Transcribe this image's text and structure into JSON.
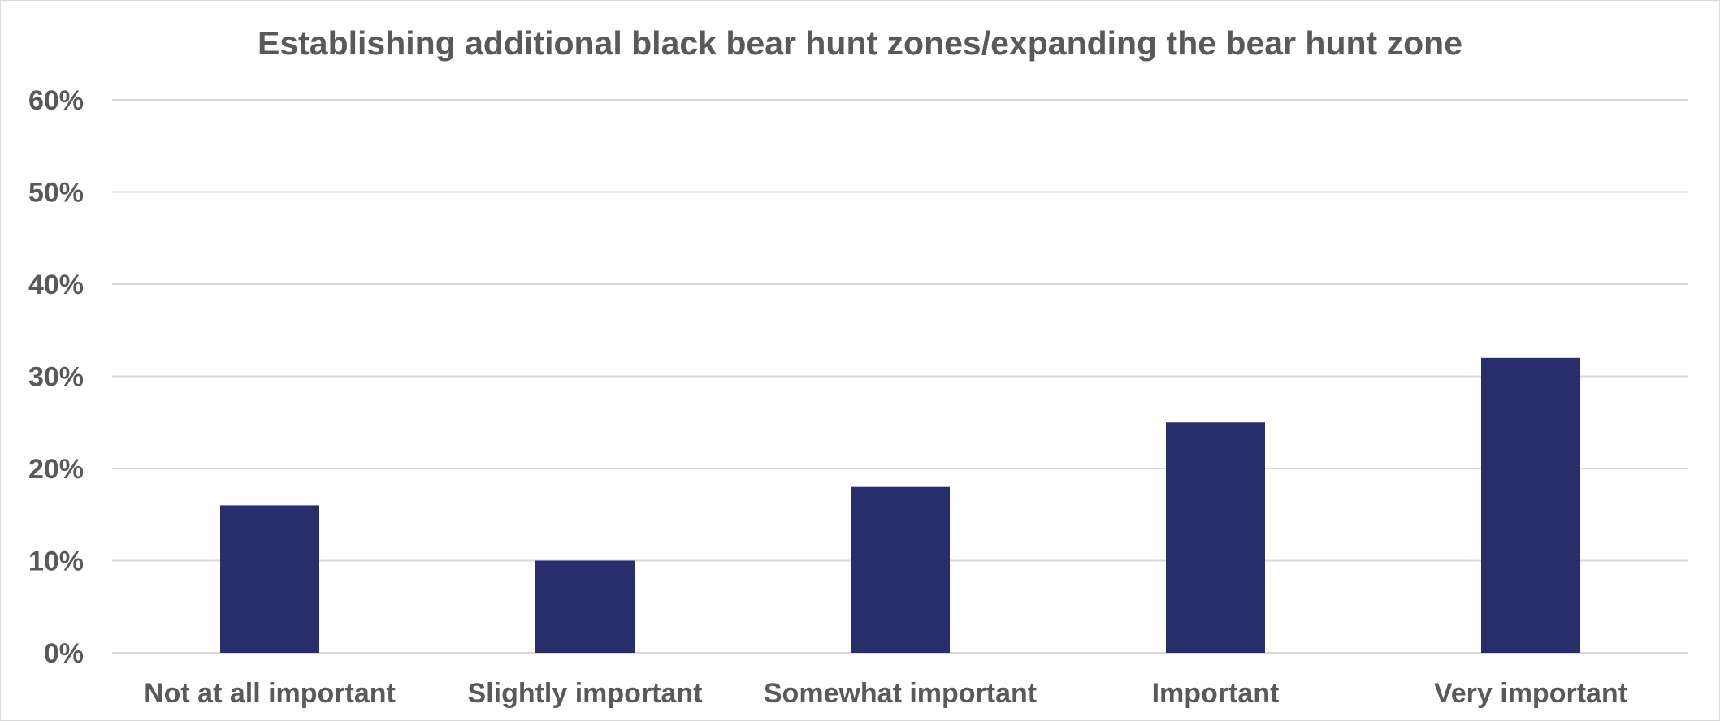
{
  "chart_data": {
    "type": "bar",
    "title": "Establishing additional black bear hunt zones/expanding the bear hunt zone",
    "xlabel": "",
    "ylabel": "",
    "categories": [
      "Not at all important",
      "Slightly important",
      "Somewhat important",
      "Important",
      "Very important"
    ],
    "values": [
      16,
      10,
      18,
      25,
      32
    ],
    "unit": "%",
    "ylim": [
      0,
      60
    ],
    "yticks": [
      0,
      10,
      20,
      30,
      40,
      50,
      60
    ],
    "ytick_labels": [
      "0%",
      "10%",
      "20%",
      "30%",
      "40%",
      "50%",
      "60%"
    ],
    "grid": true,
    "legend": "none",
    "bar_color": "#282d6b",
    "grid_color": "#d9d9d9",
    "text_color": "#595959"
  }
}
